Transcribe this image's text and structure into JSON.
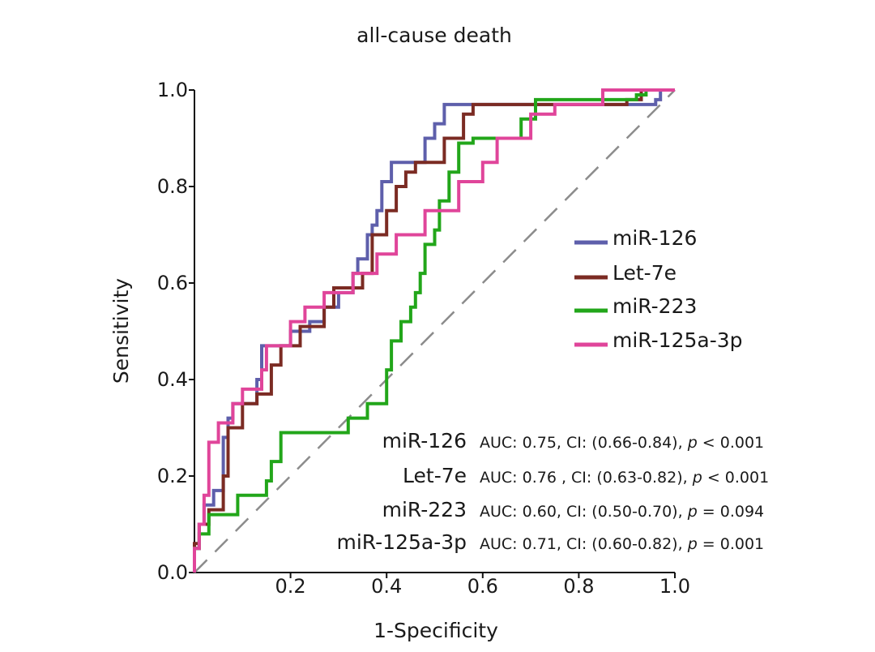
{
  "chart_data": {
    "type": "line",
    "title": "all-cause death",
    "xlabel": "1-Specificity",
    "ylabel": "Sensitivity",
    "xlim": [
      0,
      1
    ],
    "ylim": [
      0,
      1
    ],
    "x_ticks": [
      "0.2",
      "0.4",
      "0.6",
      "0.8",
      "1.0"
    ],
    "y_ticks": [
      "0.0",
      "0.2",
      "0.4",
      "0.6",
      "0.8",
      "1.0"
    ],
    "x_tick_values": [
      0.2,
      0.4,
      0.6,
      0.8,
      1.0
    ],
    "y_tick_values": [
      0.0,
      0.2,
      0.4,
      0.6,
      0.8,
      1.0
    ],
    "reference_line": {
      "x": [
        0,
        1
      ],
      "y": [
        0,
        1
      ],
      "style": "dashed",
      "color": "#8c8c8c"
    },
    "legend_position": "center-right",
    "series": [
      {
        "name": "miR-126",
        "color": "#5e5fab",
        "x": [
          0,
          0,
          0.01,
          0.01,
          0.02,
          0.02,
          0.04,
          0.04,
          0.06,
          0.06,
          0.07,
          0.07,
          0.08,
          0.08,
          0.13,
          0.13,
          0.14,
          0.14,
          0.2,
          0.2,
          0.24,
          0.24,
          0.27,
          0.27,
          0.3,
          0.3,
          0.33,
          0.33,
          0.34,
          0.34,
          0.36,
          0.36,
          0.37,
          0.37,
          0.38,
          0.38,
          0.39,
          0.39,
          0.41,
          0.41,
          0.48,
          0.48,
          0.5,
          0.5,
          0.52,
          0.52,
          0.96,
          0.96,
          0.97,
          0.97,
          1.0
        ],
        "y": [
          0,
          0.05,
          0.05,
          0.1,
          0.1,
          0.14,
          0.14,
          0.17,
          0.17,
          0.28,
          0.28,
          0.32,
          0.32,
          0.35,
          0.35,
          0.4,
          0.4,
          0.47,
          0.47,
          0.5,
          0.5,
          0.52,
          0.52,
          0.55,
          0.55,
          0.58,
          0.58,
          0.62,
          0.62,
          0.65,
          0.65,
          0.7,
          0.7,
          0.72,
          0.72,
          0.75,
          0.75,
          0.81,
          0.81,
          0.85,
          0.85,
          0.9,
          0.9,
          0.93,
          0.93,
          0.97,
          0.97,
          0.98,
          0.98,
          1.0,
          1.0
        ]
      },
      {
        "name": "Let-7e",
        "color": "#7b2b23",
        "x": [
          0,
          0,
          0.01,
          0.01,
          0.03,
          0.03,
          0.06,
          0.06,
          0.07,
          0.07,
          0.1,
          0.1,
          0.13,
          0.13,
          0.16,
          0.16,
          0.18,
          0.18,
          0.22,
          0.22,
          0.27,
          0.27,
          0.29,
          0.29,
          0.35,
          0.35,
          0.37,
          0.37,
          0.4,
          0.4,
          0.42,
          0.42,
          0.44,
          0.44,
          0.46,
          0.46,
          0.52,
          0.52,
          0.56,
          0.56,
          0.58,
          0.58,
          0.9,
          0.9,
          0.93,
          0.93,
          1.0
        ],
        "y": [
          0,
          0.06,
          0.06,
          0.1,
          0.1,
          0.13,
          0.13,
          0.2,
          0.2,
          0.3,
          0.3,
          0.35,
          0.35,
          0.37,
          0.37,
          0.43,
          0.43,
          0.47,
          0.47,
          0.51,
          0.51,
          0.55,
          0.55,
          0.59,
          0.59,
          0.62,
          0.62,
          0.7,
          0.7,
          0.75,
          0.75,
          0.8,
          0.8,
          0.83,
          0.83,
          0.85,
          0.85,
          0.9,
          0.9,
          0.95,
          0.95,
          0.97,
          0.97,
          0.98,
          0.98,
          1.0,
          1.0
        ]
      },
      {
        "name": "miR-223",
        "color": "#22a61a",
        "x": [
          0,
          0,
          0.01,
          0.01,
          0.03,
          0.03,
          0.09,
          0.09,
          0.15,
          0.15,
          0.16,
          0.16,
          0.18,
          0.18,
          0.32,
          0.32,
          0.36,
          0.36,
          0.4,
          0.4,
          0.41,
          0.41,
          0.43,
          0.43,
          0.45,
          0.45,
          0.46,
          0.46,
          0.47,
          0.47,
          0.48,
          0.48,
          0.5,
          0.5,
          0.51,
          0.51,
          0.53,
          0.53,
          0.55,
          0.55,
          0.58,
          0.58,
          0.68,
          0.68,
          0.71,
          0.71,
          0.92,
          0.92,
          0.94,
          0.94,
          1.0
        ],
        "y": [
          0,
          0.05,
          0.05,
          0.08,
          0.08,
          0.12,
          0.12,
          0.16,
          0.16,
          0.19,
          0.19,
          0.23,
          0.23,
          0.29,
          0.29,
          0.32,
          0.32,
          0.35,
          0.35,
          0.42,
          0.42,
          0.48,
          0.48,
          0.52,
          0.52,
          0.55,
          0.55,
          0.58,
          0.58,
          0.62,
          0.62,
          0.68,
          0.68,
          0.71,
          0.71,
          0.77,
          0.77,
          0.83,
          0.83,
          0.89,
          0.89,
          0.9,
          0.9,
          0.94,
          0.94,
          0.98,
          0.98,
          0.99,
          0.99,
          1.0,
          1.0
        ]
      },
      {
        "name": "miR-125a-3p",
        "color": "#e0459a",
        "x": [
          0,
          0,
          0.01,
          0.01,
          0.02,
          0.02,
          0.03,
          0.03,
          0.05,
          0.05,
          0.08,
          0.08,
          0.1,
          0.1,
          0.14,
          0.14,
          0.15,
          0.15,
          0.2,
          0.2,
          0.23,
          0.23,
          0.27,
          0.27,
          0.33,
          0.33,
          0.38,
          0.38,
          0.42,
          0.42,
          0.48,
          0.48,
          0.55,
          0.55,
          0.6,
          0.6,
          0.63,
          0.63,
          0.7,
          0.7,
          0.75,
          0.75,
          0.85,
          0.85,
          0.92,
          0.92,
          1.0
        ],
        "y": [
          0,
          0.05,
          0.05,
          0.1,
          0.1,
          0.16,
          0.16,
          0.27,
          0.27,
          0.31,
          0.31,
          0.35,
          0.35,
          0.38,
          0.38,
          0.42,
          0.42,
          0.47,
          0.47,
          0.52,
          0.52,
          0.55,
          0.55,
          0.58,
          0.58,
          0.62,
          0.62,
          0.66,
          0.66,
          0.7,
          0.7,
          0.75,
          0.75,
          0.81,
          0.81,
          0.85,
          0.85,
          0.9,
          0.9,
          0.95,
          0.95,
          0.97,
          0.97,
          1.0,
          1.0,
          1.0,
          1.0
        ]
      }
    ],
    "stats": [
      {
        "name": "miR-126",
        "auc": "AUC: 0.75, CI: (0.66-0.84), ",
        "p_label": "p",
        "p_value": " < 0.001"
      },
      {
        "name": "Let-7e",
        "auc": "AUC: 0.76 , CI: (0.63-0.82), ",
        "p_label": "p",
        "p_value": " < 0.001"
      },
      {
        "name": "miR-223",
        "auc": "AUC: 0.60, CI: (0.50-0.70), ",
        "p_label": "p",
        "p_value": " = 0.094"
      },
      {
        "name": "miR-125a-3p",
        "auc": "AUC: 0.71, CI: (0.60-0.82), ",
        "p_label": "p",
        "p_value": " = 0.001"
      }
    ]
  }
}
